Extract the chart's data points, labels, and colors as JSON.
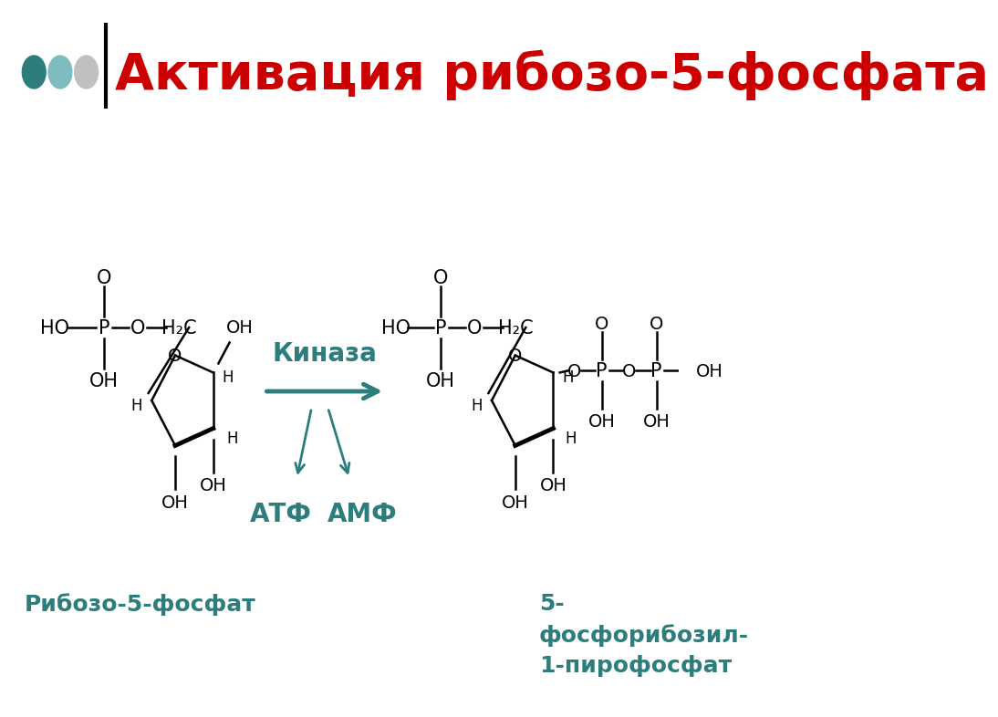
{
  "title": "Активация рибозо-5-фосфата",
  "title_color": "#CC0000",
  "title_fontsize": 40,
  "bg_color": "#FFFFFF",
  "dot_colors": [
    "#2E7D7D",
    "#7DBDBD",
    "#C0C0C0"
  ],
  "teal_color": "#2E7D7D",
  "label_left": "Рибозо-5-фосфат",
  "label_right": "5-\nфосфорибозил-\n1-пирофосфат",
  "kinase_label": "Киназа",
  "atf_label": "АТФ",
  "amf_label": "АМФ"
}
